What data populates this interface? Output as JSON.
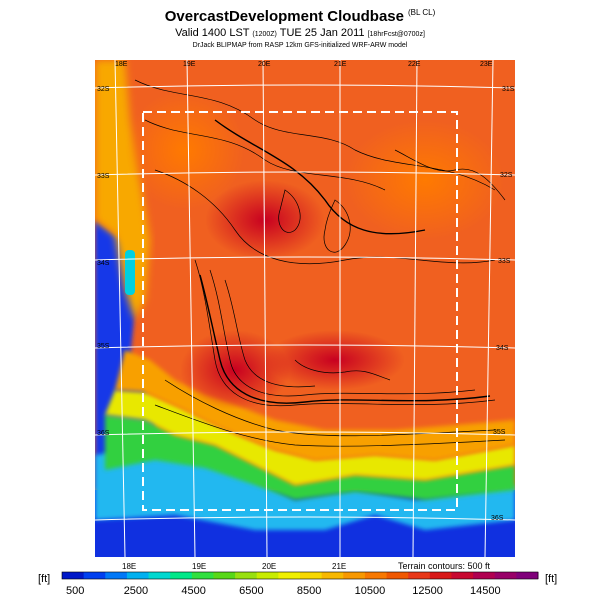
{
  "header": {
    "title": "OvercastDevelopment Cloudbase",
    "title_tag": "(BL CL)",
    "valid_prefix": "Valid 1400 LST",
    "valid_utc": "(1200Z)",
    "valid_date": "TUE 25 Jan 2011",
    "valid_forecast": "[18hrFcst@0700z]",
    "credit": "DrJack BLIPMAP from RASP 12km GFS-initialized WRF-ARW model"
  },
  "map": {
    "lon_labels_top": [
      "18E",
      "19E",
      "20E",
      "21E",
      "22E",
      "23E"
    ],
    "lon_labels_bottom": [
      "18E",
      "19E",
      "20E",
      "21E"
    ],
    "lat_labels_left": [
      "32S",
      "33S",
      "34S",
      "35S",
      "36S"
    ],
    "lat_labels_right": [
      "31S",
      "32S",
      "33S",
      "34S",
      "35S",
      "36S"
    ],
    "terrain_note": "Terrain contours: 500 ft"
  },
  "colorbar": {
    "unit_left": "[ft]",
    "unit_right": "[ft]",
    "tick_labels": [
      "500",
      "2500",
      "4500",
      "6500",
      "8500",
      "10500",
      "12500",
      "14500"
    ],
    "colors": [
      "#0018c8",
      "#0040f0",
      "#0078f8",
      "#00b0f0",
      "#00d8d0",
      "#00e888",
      "#30e040",
      "#58d818",
      "#98e010",
      "#c8ec00",
      "#f0f000",
      "#f8d800",
      "#f8b800",
      "#f89800",
      "#f87800",
      "#f05800",
      "#e83818",
      "#d81818",
      "#c80830",
      "#b00050",
      "#980068",
      "#80007a"
    ]
  }
}
